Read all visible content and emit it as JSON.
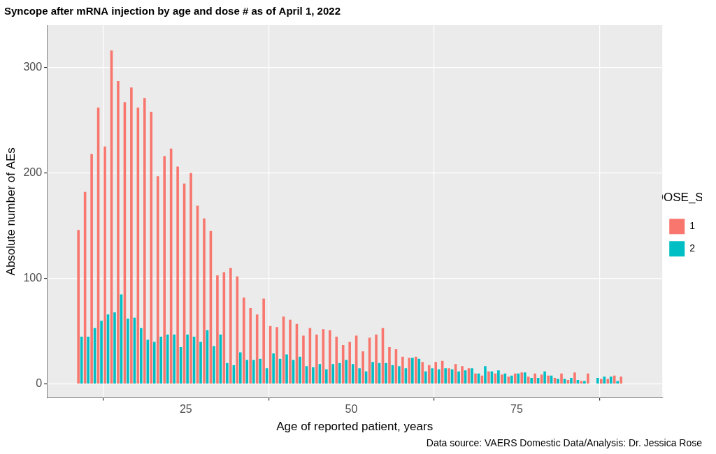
{
  "chart_data": {
    "type": "bar",
    "title": "Syncope after mRNA injection by age and dose # as of April 1, 2022",
    "x_label": "Age of reported patient, years",
    "y_label": "Absolute number of AEs",
    "legend_title": "VAX_DOSE_SERIES",
    "caption": "Data source: VAERS Domestic Data/Analysis: Dr. Jessica Rose",
    "x": [
      9,
      10,
      11,
      12,
      13,
      14,
      15,
      16,
      17,
      18,
      19,
      20,
      21,
      22,
      23,
      24,
      25,
      26,
      27,
      28,
      29,
      30,
      31,
      32,
      33,
      34,
      35,
      36,
      37,
      38,
      39,
      40,
      41,
      42,
      43,
      44,
      45,
      46,
      47,
      48,
      49,
      50,
      51,
      52,
      53,
      54,
      55,
      56,
      57,
      58,
      59,
      60,
      61,
      62,
      63,
      64,
      65,
      66,
      67,
      68,
      69,
      70,
      71,
      72,
      73,
      74,
      75,
      76,
      77,
      78,
      79,
      80,
      81,
      82,
      83,
      84,
      85,
      86,
      87,
      88,
      89,
      90,
      91
    ],
    "series": [
      {
        "name": "1",
        "color": "#F8766D",
        "values": [
          146,
          182,
          218,
          262,
          225,
          316,
          287,
          267,
          281,
          262,
          271,
          258,
          197,
          216,
          223,
          206,
          190,
          200,
          169,
          157,
          145,
          103,
          106,
          110,
          102,
          82,
          72,
          66,
          81,
          55,
          54,
          64,
          61,
          57,
          46,
          53,
          47,
          52,
          51,
          45,
          37,
          40,
          46,
          31,
          44,
          47,
          53,
          35,
          33,
          26,
          25,
          26,
          21,
          18,
          21,
          22,
          15,
          19,
          17,
          15,
          10,
          8,
          12,
          10,
          9,
          7,
          10,
          11,
          7,
          10,
          9,
          8,
          6,
          10,
          4,
          11,
          3,
          10,
          0,
          5,
          5,
          8,
          7
        ]
      },
      {
        "name": "2",
        "color": "#00BFC4",
        "values": [
          45,
          45,
          53,
          60,
          66,
          68,
          85,
          62,
          63,
          53,
          42,
          40,
          45,
          47,
          47,
          35,
          47,
          45,
          40,
          51,
          36,
          47,
          20,
          18,
          30,
          23,
          23,
          24,
          15,
          29,
          24,
          28,
          23,
          26,
          17,
          16,
          19,
          14,
          19,
          20,
          23,
          19,
          15,
          12,
          21,
          20,
          20,
          18,
          17,
          15,
          25,
          24,
          12,
          15,
          14,
          15,
          14,
          12,
          13,
          15,
          10,
          17,
          12,
          13,
          10,
          8,
          10,
          11,
          6,
          6,
          12,
          8,
          5,
          5,
          6,
          4,
          3,
          0,
          6,
          7,
          7,
          3,
          0
        ]
      }
    ],
    "xlim": [
      4,
      97
    ],
    "xticks": [
      25,
      50,
      75
    ],
    "ylim": [
      -13,
      340
    ],
    "yticks": [
      0,
      100,
      200,
      300
    ],
    "grid": true,
    "legend": "right"
  }
}
